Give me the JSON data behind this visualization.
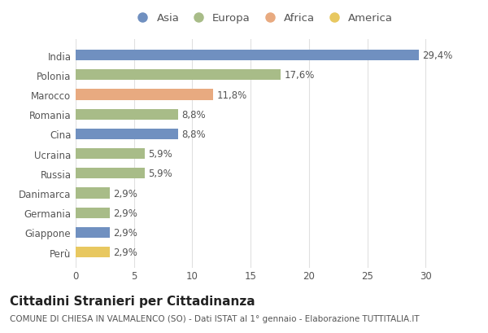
{
  "countries": [
    "India",
    "Polonia",
    "Marocco",
    "Romania",
    "Cina",
    "Ucraina",
    "Russia",
    "Danimarca",
    "Germania",
    "Giappone",
    "Perù"
  ],
  "values": [
    29.4,
    17.6,
    11.8,
    8.8,
    8.8,
    5.9,
    5.9,
    2.9,
    2.9,
    2.9,
    2.9
  ],
  "labels": [
    "29,4%",
    "17,6%",
    "11,8%",
    "8,8%",
    "8,8%",
    "5,9%",
    "5,9%",
    "2,9%",
    "2,9%",
    "2,9%",
    "2,9%"
  ],
  "continents": [
    "Asia",
    "Europa",
    "Africa",
    "Europa",
    "Asia",
    "Europa",
    "Europa",
    "Europa",
    "Europa",
    "Asia",
    "America"
  ],
  "colors": {
    "Asia": "#7090c0",
    "Europa": "#a8bc88",
    "Africa": "#e8aa80",
    "America": "#e8c860"
  },
  "legend_order": [
    "Asia",
    "Europa",
    "Africa",
    "America"
  ],
  "legend_colors": [
    "#7090c0",
    "#a8bc88",
    "#e8aa80",
    "#e8c860"
  ],
  "title": "Cittadini Stranieri per Cittadinanza",
  "subtitle": "COMUNE DI CHIESA IN VALMALENCO (SO) - Dati ISTAT al 1° gennaio - Elaborazione TUTTITALIA.IT",
  "xlim": [
    0,
    32
  ],
  "xticks": [
    0,
    5,
    10,
    15,
    20,
    25,
    30
  ],
  "background_color": "#ffffff",
  "grid_color": "#e0e0e0",
  "bar_height": 0.55,
  "label_fontsize": 8.5,
  "title_fontsize": 11,
  "subtitle_fontsize": 7.5,
  "tick_fontsize": 8.5,
  "legend_fontsize": 9.5
}
